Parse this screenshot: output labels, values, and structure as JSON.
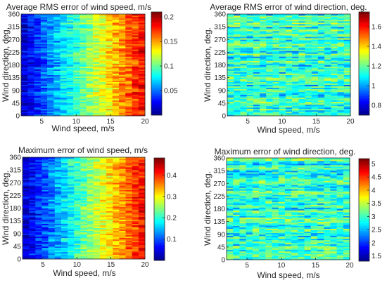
{
  "chart_data": [
    {
      "type": "heatmap",
      "title": "Average RMS error of wind speed, m/s",
      "xlabel": "Wind speed, m/s",
      "ylabel": "Wind direction, deg.",
      "xlim": [
        2,
        20
      ],
      "ylim": [
        0,
        360
      ],
      "xticks": [
        5,
        10,
        15,
        20
      ],
      "yticks": [
        0,
        45,
        90,
        135,
        180,
        225,
        270,
        315,
        360
      ],
      "colorbar": {
        "min": 0.0,
        "max": 0.21,
        "ticks": [
          0.05,
          0.1,
          0.15,
          0.2
        ],
        "tick_labels": [
          "0.05",
          "0.1",
          "0.15",
          "0.2"
        ]
      },
      "trend": "increases with wind speed, from about 0.02 at 2 m/s to about 0.2 at 20 m/s; nearly independent of direction"
    },
    {
      "type": "heatmap",
      "title": "Average RMS error of wind direction, deg.",
      "xlabel": "Wind speed, m/s",
      "ylabel": "Wind direction, deg.",
      "xlim": [
        2,
        20
      ],
      "ylim": [
        0,
        360
      ],
      "xticks": [
        5,
        10,
        15,
        20
      ],
      "yticks": [
        0,
        45,
        90,
        135,
        180,
        225,
        270,
        315,
        360
      ],
      "colorbar": {
        "min": 0.7,
        "max": 1.75,
        "ticks": [
          0.8,
          1,
          1.2,
          1.4,
          1.6
        ],
        "tick_labels": [
          "0.8",
          "1",
          "1.2",
          "1.4",
          "1.6"
        ]
      },
      "trend": "roughly uniform, values mostly 1.0–1.3 with random horizontal streaks"
    },
    {
      "type": "heatmap",
      "title": "Maximum error of wind speed, m/s",
      "xlabel": "Wind speed, m/s",
      "ylabel": "Wind direction, deg.",
      "xlim": [
        2,
        20
      ],
      "ylim": [
        0,
        360
      ],
      "xticks": [
        5,
        10,
        15,
        20
      ],
      "yticks": [
        0,
        45,
        90,
        135,
        180,
        225,
        270,
        315,
        360
      ],
      "colorbar": {
        "min": 0.0,
        "max": 0.48,
        "ticks": [
          0.1,
          0.2,
          0.3,
          0.4
        ],
        "tick_labels": [
          "0.1",
          "0.2",
          "0.3",
          "0.4"
        ]
      },
      "trend": "increases with wind speed, from about 0.05 at 2 m/s to about 0.45 at 20 m/s"
    },
    {
      "type": "heatmap",
      "title": "Maximum error of wind direction, deg.",
      "xlabel": "Wind speed, m/s",
      "ylabel": "Wind direction, deg.",
      "xlim": [
        2,
        20
      ],
      "ylim": [
        0,
        360
      ],
      "xticks": [
        5,
        10,
        15,
        20
      ],
      "yticks": [
        0,
        45,
        90,
        135,
        180,
        225,
        270,
        315,
        360
      ],
      "colorbar": {
        "min": 1.3,
        "max": 5.2,
        "ticks": [
          1.5,
          2,
          2.5,
          3,
          3.5,
          4,
          4.5,
          5
        ],
        "tick_labels": [
          "1.5",
          "2",
          "2.5",
          "3",
          "3.5",
          "4",
          "4.5",
          "5"
        ]
      },
      "trend": "roughly uniform, values mostly 2–3 with random horizontal streaks"
    }
  ]
}
